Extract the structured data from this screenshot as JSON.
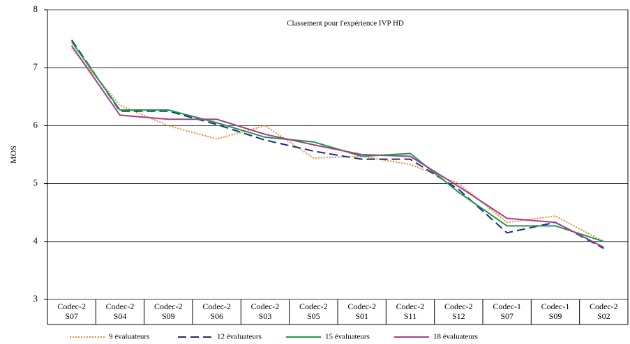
{
  "chart_data": {
    "type": "line",
    "title": "Classement pour l'expérience IVP HD",
    "y_label": "MOS",
    "categories": [
      "Codec-2\nS07",
      "Codec-2\nS04",
      "Codec-2\nS09",
      "Codec-2\nS06",
      "Codec-2\nS03",
      "Codec-2\nS05",
      "Codec-2\nS01",
      "Codec-2\nS11",
      "Codec-2\nS12",
      "Codec-1\nS07",
      "Codec-1\nS09",
      "Codec-2\nS02"
    ],
    "series": [
      {
        "name": "9 évaluateurs",
        "color": "#e8872c",
        "dash": "dotted",
        "values": [
          7.33,
          6.35,
          6.0,
          5.77,
          6.0,
          5.44,
          5.47,
          5.33,
          5.0,
          4.33,
          4.44,
          4.0
        ]
      },
      {
        "name": "12 évaluateurs",
        "color": "#1f2a80",
        "dash": "dashed",
        "values": [
          7.48,
          6.25,
          6.25,
          6.02,
          5.75,
          5.56,
          5.42,
          5.42,
          4.9,
          4.15,
          4.33,
          3.88
        ]
      },
      {
        "name": "15 évaluateurs",
        "color": "#1a9a4a",
        "dash": "solid",
        "values": [
          7.45,
          6.27,
          6.27,
          6.05,
          5.8,
          5.72,
          5.47,
          5.52,
          4.85,
          4.27,
          4.27,
          4.0
        ]
      },
      {
        "name": "18 évaluateurs",
        "color": "#a0408a",
        "dash": "solid",
        "values": [
          7.38,
          6.18,
          6.11,
          6.11,
          5.85,
          5.67,
          5.5,
          5.47,
          4.95,
          4.4,
          4.33,
          3.9
        ]
      }
    ],
    "ylim": [
      3,
      8
    ],
    "yticks": [
      3,
      4,
      5,
      6,
      7,
      8
    ],
    "grid": true
  }
}
